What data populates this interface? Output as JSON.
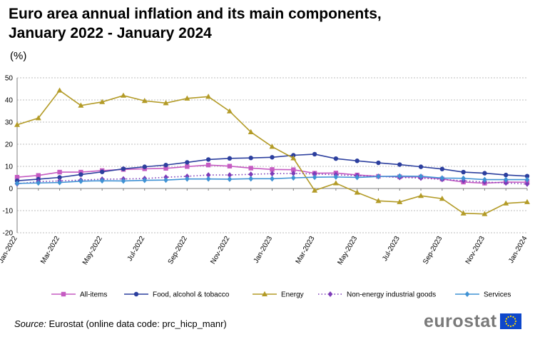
{
  "header": {
    "title_line1": "Euro area annual inflation and its main components,",
    "title_line2": "January 2022 - January 2024",
    "unit": "(%)"
  },
  "footer": {
    "source_label": "Source:",
    "source_text": "Eurostat (online data code: prc_hicp_manr)",
    "logo_text": "eurostat"
  },
  "chart_data": {
    "type": "line",
    "title": "Euro area annual inflation and its main components, January 2022 - January 2024",
    "ylabel": "(%)",
    "ylim": [
      -20,
      50
    ],
    "yticks": [
      -20,
      -10,
      0,
      10,
      20,
      30,
      40,
      50
    ],
    "grid": true,
    "legend": "bottom",
    "x": [
      "Jan-2022",
      "Feb-2022",
      "Mar-2022",
      "Apr-2022",
      "May-2022",
      "Jun-2022",
      "Jul-2022",
      "Aug-2022",
      "Sep-2022",
      "Oct-2022",
      "Nov-2022",
      "Dec-2022",
      "Jan-2023",
      "Feb-2023",
      "Mar-2023",
      "Apr-2023",
      "May-2023",
      "Jun-2023",
      "Jul-2023",
      "Aug-2023",
      "Sep-2023",
      "Oct-2023",
      "Nov-2023",
      "Dec-2023",
      "Jan-2024"
    ],
    "xtick_labels": [
      "Jan-2022",
      "Mar-2022",
      "May-2022",
      "Jul-2022",
      "Sep-2022",
      "Nov-2022",
      "Jan-2023",
      "Mar-2023",
      "May-2023",
      "Jul-2023",
      "Sep-2023",
      "Nov-2023",
      "Jan-2024"
    ],
    "series": [
      {
        "name": "All-items",
        "color": "#c55bc2",
        "marker": "square",
        "dash": false,
        "values": [
          5.1,
          5.9,
          7.4,
          7.4,
          8.1,
          8.6,
          8.9,
          9.1,
          9.9,
          10.6,
          10.1,
          9.2,
          8.6,
          8.5,
          6.9,
          7.0,
          6.1,
          5.5,
          5.3,
          5.2,
          4.3,
          2.9,
          2.4,
          2.9,
          2.8
        ]
      },
      {
        "name": "Food, alcohol & tobacco",
        "color": "#2c3f9e",
        "marker": "circle",
        "dash": false,
        "values": [
          3.5,
          4.2,
          5.0,
          6.3,
          7.5,
          8.9,
          9.8,
          10.6,
          11.8,
          13.1,
          13.6,
          13.8,
          14.1,
          15.0,
          15.5,
          13.5,
          12.5,
          11.6,
          10.8,
          9.8,
          8.8,
          7.4,
          6.9,
          6.1,
          5.6
        ]
      },
      {
        "name": "Energy",
        "color": "#b39b27",
        "marker": "triangle",
        "dash": false,
        "values": [
          28.8,
          31.8,
          44.3,
          37.5,
          39.1,
          42.0,
          39.6,
          38.6,
          40.7,
          41.5,
          34.9,
          25.5,
          18.9,
          13.7,
          -0.9,
          2.4,
          -1.8,
          -5.6,
          -6.1,
          -3.3,
          -4.6,
          -11.2,
          -11.5,
          -6.7,
          -6.1
        ]
      },
      {
        "name": "Non-energy industrial goods",
        "color": "#7d3bb8",
        "marker": "diamond",
        "dash": true,
        "values": [
          2.1,
          3.1,
          3.4,
          3.8,
          4.2,
          4.3,
          4.5,
          5.1,
          5.5,
          6.1,
          6.1,
          6.4,
          6.7,
          6.8,
          6.6,
          6.2,
          5.8,
          5.5,
          5.0,
          4.7,
          4.1,
          3.5,
          2.9,
          2.5,
          2.0
        ]
      },
      {
        "name": "Services",
        "color": "#3f92d4",
        "marker": "diamond",
        "dash": false,
        "values": [
          2.3,
          2.5,
          2.7,
          3.3,
          3.5,
          3.4,
          3.7,
          3.8,
          4.3,
          4.3,
          4.2,
          4.4,
          4.4,
          4.8,
          5.1,
          5.2,
          5.0,
          5.4,
          5.6,
          5.5,
          4.7,
          4.6,
          4.0,
          4.0,
          4.0
        ]
      }
    ]
  }
}
